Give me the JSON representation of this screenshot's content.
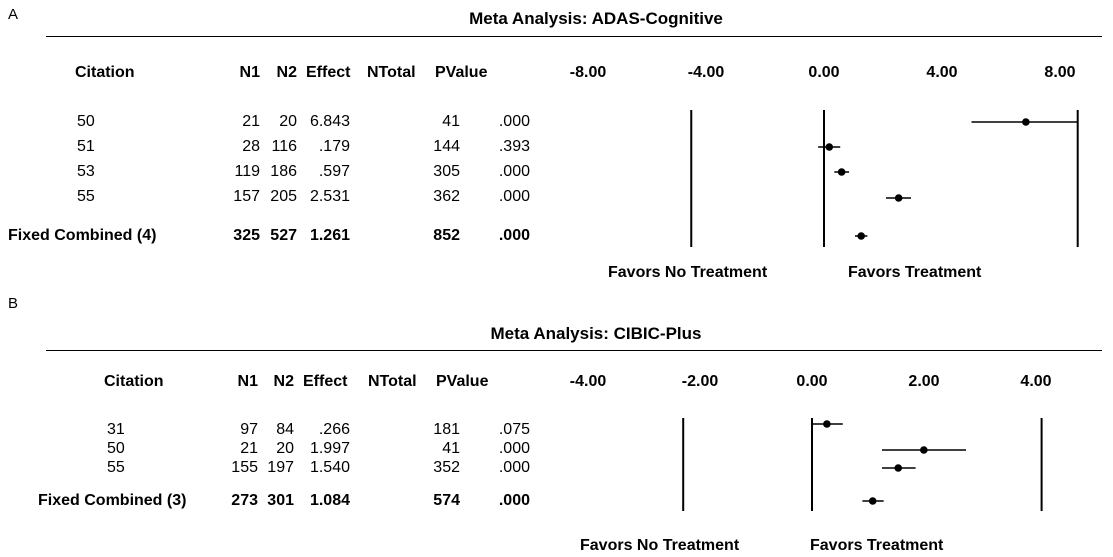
{
  "chart_data": [
    {
      "type": "table",
      "panel_label": "A",
      "title": "Meta Analysis: ADAS-Cognitive",
      "columns": [
        "Citation",
        "N1",
        "N2",
        "Effect",
        "NTotal",
        "PValue"
      ],
      "rows": [
        {
          "citation": "50",
          "n1": "21",
          "n2": "20",
          "effect": "6.843",
          "ntotal": "41",
          "pvalue": ".000",
          "est": 6.843,
          "lo": 5.0,
          "hi": 8.6
        },
        {
          "citation": "51",
          "n1": "28",
          "n2": "116",
          "effect": ".179",
          "ntotal": "144",
          "pvalue": ".393",
          "est": 0.179,
          "lo": -0.2,
          "hi": 0.55
        },
        {
          "citation": "53",
          "n1": "119",
          "n2": "186",
          "effect": ".597",
          "ntotal": "305",
          "pvalue": ".000",
          "est": 0.597,
          "lo": 0.35,
          "hi": 0.85
        },
        {
          "citation": "55",
          "n1": "157",
          "n2": "205",
          "effect": "2.531",
          "ntotal": "362",
          "pvalue": ".000",
          "est": 2.531,
          "lo": 2.1,
          "hi": 2.95
        }
      ],
      "combined": {
        "citation": "Fixed Combined (4)",
        "n1": "325",
        "n2": "527",
        "effect": "1.261",
        "ntotal": "852",
        "pvalue": ".000",
        "est": 1.261,
        "lo": 1.05,
        "hi": 1.47
      },
      "x_ticks": [
        "-8.00",
        "-4.00",
        "0.00",
        "4.00",
        "8.00"
      ],
      "x_tick_values": [
        -8,
        -4,
        0,
        4,
        8
      ],
      "xlim": [
        -8,
        8
      ],
      "reference_lines": [
        -4.5,
        0,
        8.6
      ],
      "favors_left": "Favors No Treatment",
      "favors_right": "Favors Treatment"
    },
    {
      "type": "table",
      "panel_label": "B",
      "title": "Meta Analysis: CIBIC-Plus",
      "columns": [
        "Citation",
        "N1",
        "N2",
        "Effect",
        "NTotal",
        "PValue"
      ],
      "rows": [
        {
          "citation": "31",
          "n1": "97",
          "n2": "84",
          "effect": ".266",
          "ntotal": "181",
          "pvalue": ".075",
          "est": 0.266,
          "lo": 0.0,
          "hi": 0.55
        },
        {
          "citation": "50",
          "n1": "21",
          "n2": "20",
          "effect": "1.997",
          "ntotal": "41",
          "pvalue": ".000",
          "est": 1.997,
          "lo": 1.25,
          "hi": 2.75
        },
        {
          "citation": "55",
          "n1": "155",
          "n2": "197",
          "effect": "1.540",
          "ntotal": "352",
          "pvalue": ".000",
          "est": 1.54,
          "lo": 1.25,
          "hi": 1.85
        },
        {
          "citation": "Fixed Combined (3)_",
          "n1": "",
          "n2": "",
          "effect": "",
          "ntotal": "",
          "pvalue": "",
          "est": null,
          "lo": null,
          "hi": null
        }
      ],
      "combined": {
        "citation": "Fixed Combined (3)",
        "n1": "273",
        "n2": "301",
        "effect": "1.084",
        "ntotal": "574",
        "pvalue": ".000",
        "est": 1.084,
        "lo": 0.9,
        "hi": 1.28
      },
      "x_ticks": [
        "-4.00",
        "-2.00",
        "0.00",
        "2.00",
        "4.00"
      ],
      "x_tick_values": [
        -4,
        -2,
        0,
        2,
        4
      ],
      "xlim": [
        -4,
        4
      ],
      "reference_lines": [
        -2.3,
        0,
        4.1
      ],
      "favors_left": "Favors No Treatment",
      "favors_right": "Favors Treatment"
    }
  ]
}
